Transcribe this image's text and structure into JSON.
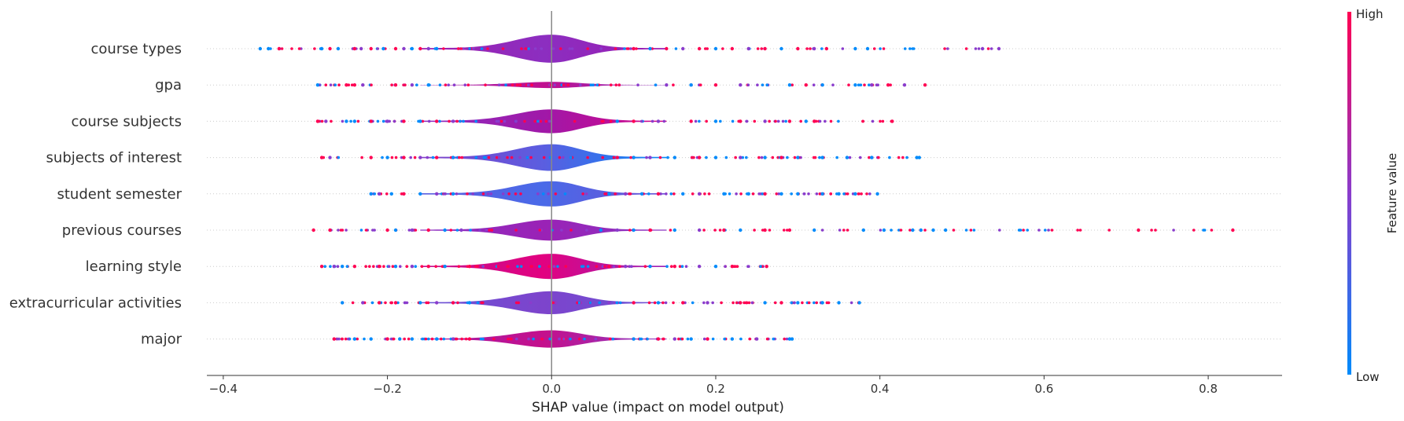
{
  "chart_data": {
    "type": "violin-summary",
    "title": "",
    "xlabel": "SHAP value (impact on model output)",
    "ylabel": "",
    "xlim": [
      -0.42,
      0.89
    ],
    "xticks": [
      -0.4,
      -0.2,
      0.0,
      0.2,
      0.4,
      0.6,
      0.8
    ],
    "xtick_labels": [
      "−0.4",
      "−0.2",
      "0.0",
      "0.2",
      "0.4",
      "0.6",
      "0.8"
    ],
    "colorbar": {
      "title": "Feature value",
      "high_label": "High",
      "low_label": "Low",
      "low_color": "#008bfb",
      "high_color": "#ff0052"
    },
    "features": [
      {
        "name": "course types",
        "min": -0.35,
        "max": 0.545,
        "width": 1.0,
        "colors": [
          "#9e20b0",
          "#8c2ec0",
          "#9a1db3"
        ],
        "outliers": [
          {
            "x": -0.355,
            "c": "blue"
          },
          {
            "x": -0.345,
            "c": "blue"
          },
          {
            "x": -0.332,
            "c": "pink"
          },
          {
            "x": -0.28,
            "c": "blue"
          },
          {
            "x": -0.27,
            "c": "pink"
          },
          {
            "x": -0.26,
            "c": "blue"
          },
          {
            "x": -0.24,
            "c": "pink"
          },
          {
            "x": -0.232,
            "c": "purple"
          },
          {
            "x": -0.22,
            "c": "pink"
          },
          {
            "x": -0.205,
            "c": "blue"
          },
          {
            "x": -0.19,
            "c": "pink"
          },
          {
            "x": -0.18,
            "c": "purple"
          },
          {
            "x": -0.17,
            "c": "blue"
          },
          {
            "x": -0.16,
            "c": "pink"
          },
          {
            "x": -0.15,
            "c": "purple"
          },
          {
            "x": -0.14,
            "c": "blue"
          },
          {
            "x": 0.1,
            "c": "pink"
          },
          {
            "x": 0.12,
            "c": "blue"
          },
          {
            "x": 0.14,
            "c": "pink"
          },
          {
            "x": 0.16,
            "c": "purple"
          },
          {
            "x": 0.18,
            "c": "pink"
          },
          {
            "x": 0.2,
            "c": "blue"
          },
          {
            "x": 0.22,
            "c": "pink"
          },
          {
            "x": 0.24,
            "c": "purple"
          },
          {
            "x": 0.26,
            "c": "pink"
          },
          {
            "x": 0.28,
            "c": "blue"
          },
          {
            "x": 0.3,
            "c": "pink"
          },
          {
            "x": 0.32,
            "c": "purple"
          },
          {
            "x": 0.335,
            "c": "pink"
          },
          {
            "x": 0.37,
            "c": "blue"
          },
          {
            "x": 0.385,
            "c": "blue"
          },
          {
            "x": 0.525,
            "c": "purple"
          },
          {
            "x": 0.545,
            "c": "purple"
          }
        ]
      },
      {
        "name": "gpa",
        "min": -0.285,
        "max": 0.455,
        "width": 0.22,
        "colors": [
          "#9e20b0",
          "#c0108f",
          "#8c2ec0"
        ],
        "outliers": [
          {
            "x": -0.285,
            "c": "blue"
          },
          {
            "x": -0.25,
            "c": "pink"
          },
          {
            "x": -0.24,
            "c": "pink"
          },
          {
            "x": -0.23,
            "c": "purple"
          },
          {
            "x": -0.19,
            "c": "pink"
          },
          {
            "x": -0.17,
            "c": "purple"
          },
          {
            "x": -0.15,
            "c": "blue"
          },
          {
            "x": 0.14,
            "c": "purple"
          },
          {
            "x": 0.17,
            "c": "blue"
          },
          {
            "x": 0.2,
            "c": "pink"
          },
          {
            "x": 0.23,
            "c": "purple"
          },
          {
            "x": 0.29,
            "c": "blue"
          },
          {
            "x": 0.31,
            "c": "pink"
          },
          {
            "x": 0.33,
            "c": "blue"
          },
          {
            "x": 0.37,
            "c": "blue"
          },
          {
            "x": 0.39,
            "c": "purple"
          },
          {
            "x": 0.41,
            "c": "pink"
          },
          {
            "x": 0.43,
            "c": "purple"
          },
          {
            "x": 0.455,
            "c": "pink"
          }
        ]
      },
      {
        "name": "course subjects",
        "min": -0.285,
        "max": 0.415,
        "width": 0.85,
        "colors": [
          "#8c2ec0",
          "#a018a8",
          "#d4068a"
        ],
        "outliers": [
          {
            "x": -0.285,
            "c": "pink"
          },
          {
            "x": -0.275,
            "c": "purple"
          },
          {
            "x": -0.25,
            "c": "blue"
          },
          {
            "x": -0.24,
            "c": "blue"
          },
          {
            "x": -0.22,
            "c": "pink"
          },
          {
            "x": -0.2,
            "c": "purple"
          },
          {
            "x": -0.18,
            "c": "pink"
          },
          {
            "x": -0.16,
            "c": "blue"
          },
          {
            "x": -0.14,
            "c": "pink"
          },
          {
            "x": -0.12,
            "c": "purple"
          },
          {
            "x": 0.08,
            "c": "blue"
          },
          {
            "x": 0.1,
            "c": "pink"
          },
          {
            "x": 0.13,
            "c": "purple"
          },
          {
            "x": 0.17,
            "c": "pink"
          },
          {
            "x": 0.2,
            "c": "blue"
          },
          {
            "x": 0.23,
            "c": "pink"
          },
          {
            "x": 0.26,
            "c": "purple"
          },
          {
            "x": 0.29,
            "c": "pink"
          },
          {
            "x": 0.31,
            "c": "blue"
          },
          {
            "x": 0.32,
            "c": "pink"
          },
          {
            "x": 0.415,
            "c": "pink"
          }
        ]
      },
      {
        "name": "subjects of interest",
        "min": -0.28,
        "max": 0.448,
        "width": 0.95,
        "colors": [
          "#8040c8",
          "#5b5ee0",
          "#0a88f8"
        ],
        "outliers": [
          {
            "x": -0.28,
            "c": "pink"
          },
          {
            "x": -0.27,
            "c": "purple"
          },
          {
            "x": -0.22,
            "c": "pink"
          },
          {
            "x": -0.2,
            "c": "blue"
          },
          {
            "x": -0.18,
            "c": "pink"
          },
          {
            "x": -0.16,
            "c": "purple"
          },
          {
            "x": -0.14,
            "c": "pink"
          },
          {
            "x": -0.12,
            "c": "blue"
          },
          {
            "x": 0.08,
            "c": "pink"
          },
          {
            "x": 0.1,
            "c": "blue"
          },
          {
            "x": 0.12,
            "c": "purple"
          },
          {
            "x": 0.15,
            "c": "blue"
          },
          {
            "x": 0.18,
            "c": "pink"
          },
          {
            "x": 0.2,
            "c": "blue"
          },
          {
            "x": 0.23,
            "c": "purple"
          },
          {
            "x": 0.26,
            "c": "blue"
          },
          {
            "x": 0.28,
            "c": "pink"
          },
          {
            "x": 0.3,
            "c": "blue"
          },
          {
            "x": 0.33,
            "c": "blue"
          },
          {
            "x": 0.36,
            "c": "blue"
          },
          {
            "x": 0.39,
            "c": "blue"
          },
          {
            "x": 0.445,
            "c": "blue"
          },
          {
            "x": 0.448,
            "c": "blue"
          }
        ]
      },
      {
        "name": "student semester",
        "min": -0.22,
        "max": 0.397,
        "width": 0.9,
        "colors": [
          "#5b5ee0",
          "#4a6ae8",
          "#6a52d6"
        ],
        "outliers": [
          {
            "x": -0.22,
            "c": "blue"
          },
          {
            "x": -0.21,
            "c": "purple"
          },
          {
            "x": -0.195,
            "c": "blue"
          },
          {
            "x": -0.18,
            "c": "pink"
          },
          {
            "x": -0.16,
            "c": "blue"
          },
          {
            "x": -0.14,
            "c": "purple"
          },
          {
            "x": -0.12,
            "c": "blue"
          },
          {
            "x": 0.07,
            "c": "blue"
          },
          {
            "x": 0.09,
            "c": "purple"
          },
          {
            "x": 0.11,
            "c": "blue"
          },
          {
            "x": 0.13,
            "c": "pink"
          },
          {
            "x": 0.16,
            "c": "blue"
          },
          {
            "x": 0.18,
            "c": "purple"
          },
          {
            "x": 0.21,
            "c": "blue"
          },
          {
            "x": 0.24,
            "c": "blue"
          },
          {
            "x": 0.26,
            "c": "pink"
          },
          {
            "x": 0.28,
            "c": "blue"
          },
          {
            "x": 0.3,
            "c": "blue"
          },
          {
            "x": 0.33,
            "c": "blue"
          },
          {
            "x": 0.35,
            "c": "blue"
          },
          {
            "x": 0.37,
            "c": "blue"
          },
          {
            "x": 0.397,
            "c": "blue"
          }
        ]
      },
      {
        "name": "previous courses",
        "min": -0.29,
        "max": 0.83,
        "width": 0.75,
        "colors": [
          "#8c2ec0",
          "#9a22b6",
          "#8a34c2"
        ],
        "outliers": [
          {
            "x": -0.29,
            "c": "pink"
          },
          {
            "x": -0.27,
            "c": "pink"
          },
          {
            "x": -0.2,
            "c": "pink"
          },
          {
            "x": -0.19,
            "c": "blue"
          },
          {
            "x": -0.17,
            "c": "purple"
          },
          {
            "x": -0.15,
            "c": "pink"
          },
          {
            "x": -0.13,
            "c": "blue"
          },
          {
            "x": -0.11,
            "c": "purple"
          },
          {
            "x": 0.06,
            "c": "blue"
          },
          {
            "x": 0.08,
            "c": "purple"
          },
          {
            "x": 0.1,
            "c": "blue"
          },
          {
            "x": 0.12,
            "c": "pink"
          },
          {
            "x": 0.15,
            "c": "blue"
          },
          {
            "x": 0.18,
            "c": "purple"
          },
          {
            "x": 0.21,
            "c": "pink"
          },
          {
            "x": 0.23,
            "c": "blue"
          },
          {
            "x": 0.26,
            "c": "pink"
          },
          {
            "x": 0.29,
            "c": "pink"
          },
          {
            "x": 0.32,
            "c": "blue"
          },
          {
            "x": 0.38,
            "c": "blue"
          },
          {
            "x": 0.405,
            "c": "blue"
          },
          {
            "x": 0.44,
            "c": "blue"
          },
          {
            "x": 0.45,
            "c": "blue"
          },
          {
            "x": 0.465,
            "c": "blue"
          },
          {
            "x": 0.48,
            "c": "blue"
          },
          {
            "x": 0.715,
            "c": "pink"
          },
          {
            "x": 0.83,
            "c": "pink"
          }
        ]
      },
      {
        "name": "learning style",
        "min": -0.28,
        "max": 0.262,
        "width": 0.9,
        "colors": [
          "#c20e8f",
          "#e20280",
          "#9a22b6"
        ],
        "outliers": [
          {
            "x": -0.28,
            "c": "pink"
          },
          {
            "x": -0.265,
            "c": "purple"
          },
          {
            "x": -0.255,
            "c": "blue"
          },
          {
            "x": -0.24,
            "c": "pink"
          },
          {
            "x": -0.21,
            "c": "pink"
          },
          {
            "x": -0.19,
            "c": "blue"
          },
          {
            "x": -0.17,
            "c": "purple"
          },
          {
            "x": -0.15,
            "c": "pink"
          },
          {
            "x": -0.13,
            "c": "blue"
          },
          {
            "x": -0.1,
            "c": "pink"
          },
          {
            "x": 0.07,
            "c": "pink"
          },
          {
            "x": 0.09,
            "c": "purple"
          },
          {
            "x": 0.12,
            "c": "blue"
          },
          {
            "x": 0.15,
            "c": "pink"
          },
          {
            "x": 0.18,
            "c": "purple"
          },
          {
            "x": 0.2,
            "c": "blue"
          },
          {
            "x": 0.22,
            "c": "pink"
          },
          {
            "x": 0.262,
            "c": "pink"
          }
        ]
      },
      {
        "name": "extracurricular activities",
        "min": -0.255,
        "max": 0.375,
        "width": 0.82,
        "colors": [
          "#6a52d6",
          "#7d44cc",
          "#6a52d6"
        ],
        "outliers": [
          {
            "x": -0.255,
            "c": "blue"
          },
          {
            "x": -0.23,
            "c": "purple"
          },
          {
            "x": -0.21,
            "c": "pink"
          },
          {
            "x": -0.19,
            "c": "pink"
          },
          {
            "x": -0.16,
            "c": "blue"
          },
          {
            "x": -0.14,
            "c": "purple"
          },
          {
            "x": -0.12,
            "c": "pink"
          },
          {
            "x": -0.1,
            "c": "blue"
          },
          {
            "x": 0.07,
            "c": "purple"
          },
          {
            "x": 0.1,
            "c": "pink"
          },
          {
            "x": 0.13,
            "c": "blue"
          },
          {
            "x": 0.16,
            "c": "pink"
          },
          {
            "x": 0.19,
            "c": "purple"
          },
          {
            "x": 0.23,
            "c": "pink"
          },
          {
            "x": 0.26,
            "c": "blue"
          },
          {
            "x": 0.28,
            "c": "pink"
          },
          {
            "x": 0.3,
            "c": "blue"
          },
          {
            "x": 0.33,
            "c": "blue"
          },
          {
            "x": 0.35,
            "c": "blue"
          },
          {
            "x": 0.375,
            "c": "blue"
          }
        ]
      },
      {
        "name": "major",
        "min": -0.265,
        "max": 0.293,
        "width": 0.62,
        "colors": [
          "#a31aa8",
          "#c4108c",
          "#8a3ac6"
        ],
        "outliers": [
          {
            "x": -0.265,
            "c": "pink"
          },
          {
            "x": -0.24,
            "c": "blue"
          },
          {
            "x": -0.22,
            "c": "blue"
          },
          {
            "x": -0.2,
            "c": "pink"
          },
          {
            "x": -0.185,
            "c": "blue"
          },
          {
            "x": -0.17,
            "c": "blue"
          },
          {
            "x": -0.14,
            "c": "blue"
          },
          {
            "x": -0.12,
            "c": "purple"
          },
          {
            "x": -0.1,
            "c": "pink"
          },
          {
            "x": 0.1,
            "c": "blue"
          },
          {
            "x": 0.13,
            "c": "pink"
          },
          {
            "x": 0.15,
            "c": "purple"
          },
          {
            "x": 0.17,
            "c": "blue"
          },
          {
            "x": 0.19,
            "c": "pink"
          },
          {
            "x": 0.22,
            "c": "blue"
          },
          {
            "x": 0.25,
            "c": "purple"
          },
          {
            "x": 0.29,
            "c": "blue"
          },
          {
            "x": 0.293,
            "c": "blue"
          }
        ]
      }
    ]
  }
}
